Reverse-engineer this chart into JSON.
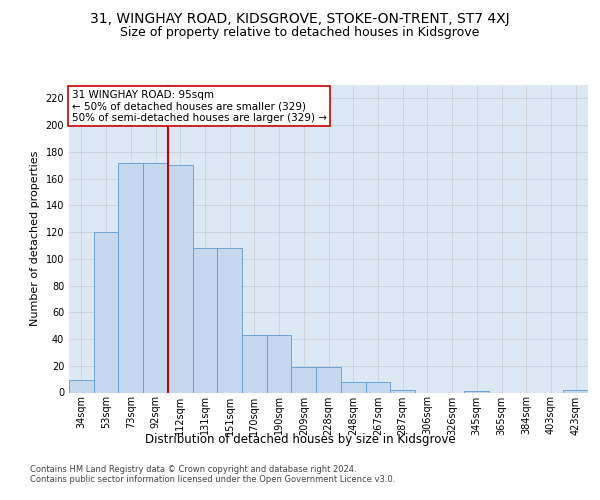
{
  "title1": "31, WINGHAY ROAD, KIDSGROVE, STOKE-ON-TRENT, ST7 4XJ",
  "title2": "Size of property relative to detached houses in Kidsgrove",
  "xlabel": "Distribution of detached houses by size in Kidsgrove",
  "ylabel": "Number of detached properties",
  "categories": [
    "34sqm",
    "53sqm",
    "73sqm",
    "92sqm",
    "112sqm",
    "131sqm",
    "151sqm",
    "170sqm",
    "190sqm",
    "209sqm",
    "228sqm",
    "248sqm",
    "267sqm",
    "287sqm",
    "306sqm",
    "326sqm",
    "345sqm",
    "365sqm",
    "384sqm",
    "403sqm",
    "423sqm"
  ],
  "values": [
    9,
    120,
    172,
    172,
    170,
    108,
    108,
    43,
    43,
    19,
    19,
    8,
    8,
    2,
    0,
    0,
    1,
    0,
    0,
    0,
    2
  ],
  "bar_color": "#c5d8ed",
  "bar_edge_color": "#5b9bd5",
  "vline_x": 3.5,
  "vline_color": "#cc0000",
  "annotation_text": "31 WINGHAY ROAD: 95sqm\n← 50% of detached houses are smaller (329)\n50% of semi-detached houses are larger (329) →",
  "annotation_box_color": "#ffffff",
  "annotation_box_edge": "#cc0000",
  "ylim": [
    0,
    230
  ],
  "yticks": [
    0,
    20,
    40,
    60,
    80,
    100,
    120,
    140,
    160,
    180,
    200,
    220
  ],
  "grid_color": "#cccccc",
  "plot_bg": "#dce9f5",
  "footer": "Contains HM Land Registry data © Crown copyright and database right 2024.\nContains public sector information licensed under the Open Government Licence v3.0.",
  "title1_fontsize": 10,
  "title2_fontsize": 9,
  "xlabel_fontsize": 8.5,
  "ylabel_fontsize": 8,
  "tick_fontsize": 7,
  "annotation_fontsize": 7.5,
  "footer_fontsize": 6
}
